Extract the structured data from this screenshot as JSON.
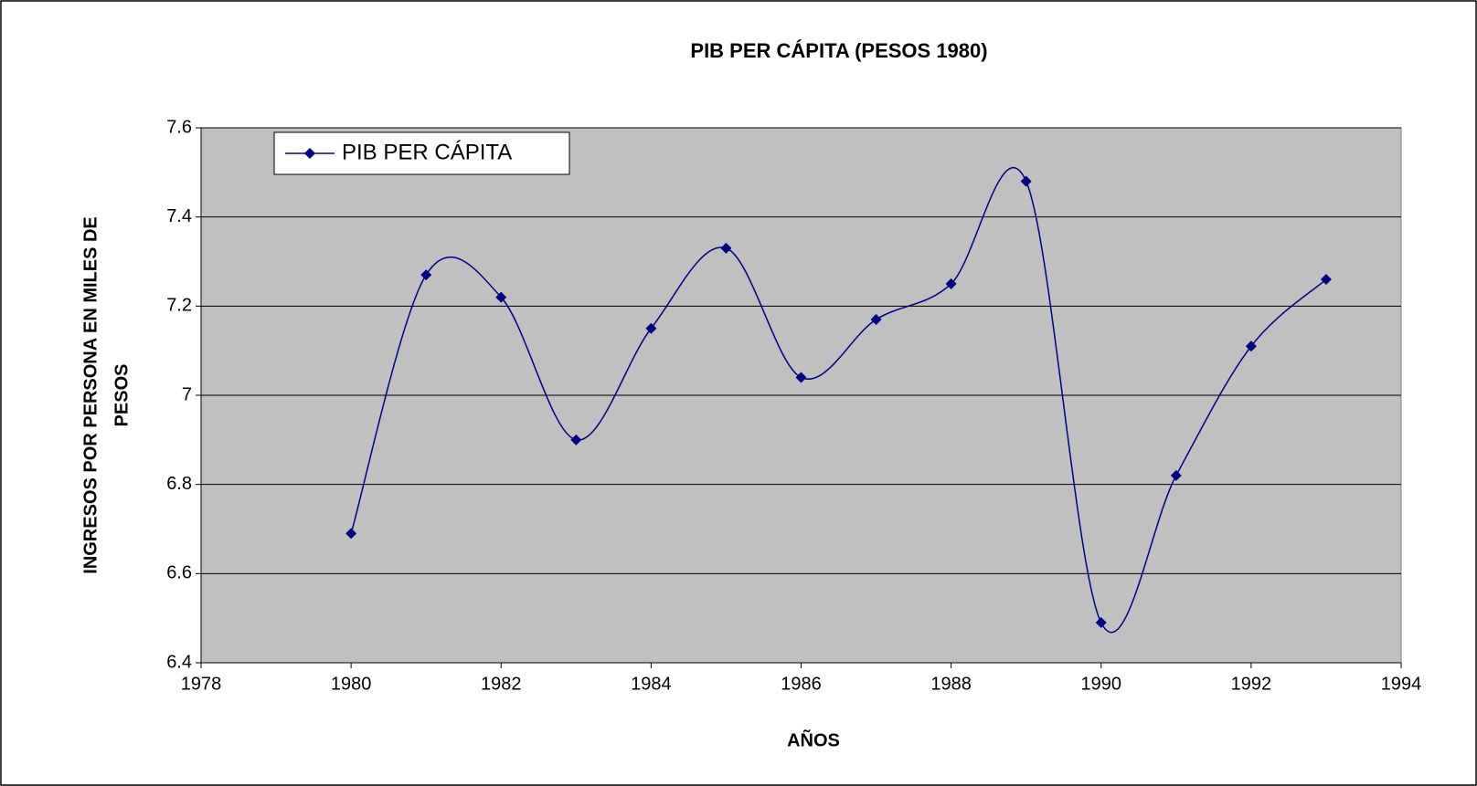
{
  "chart_data": {
    "type": "line",
    "title": "PIB PER CÁPITA  (PESOS 1980)",
    "xlabel": "AÑOS",
    "ylabel": [
      "INGRESOS POR PERSONA  EN MILES DE",
      "PESOS"
    ],
    "x": [
      1980,
      1981,
      1982,
      1983,
      1984,
      1985,
      1986,
      1987,
      1988,
      1989,
      1990,
      1991,
      1992,
      1993
    ],
    "series": [
      {
        "name": "PIB PER CÁPITA",
        "color": "#000080",
        "values": [
          6.69,
          7.27,
          7.22,
          6.9,
          7.15,
          7.33,
          7.04,
          7.17,
          7.25,
          7.48,
          6.49,
          6.82,
          7.11,
          7.26
        ]
      }
    ],
    "xlim": [
      1978,
      1994
    ],
    "xticks": [
      1978,
      1980,
      1982,
      1984,
      1986,
      1988,
      1990,
      1992,
      1994
    ],
    "ylim": [
      6.4,
      7.6
    ],
    "yticks": [
      6.4,
      6.6,
      6.8,
      7,
      7.2,
      7.4,
      7.6
    ],
    "grid": true,
    "smooth": true,
    "legend": "upper left",
    "plot_background": "#c0c0c0"
  }
}
